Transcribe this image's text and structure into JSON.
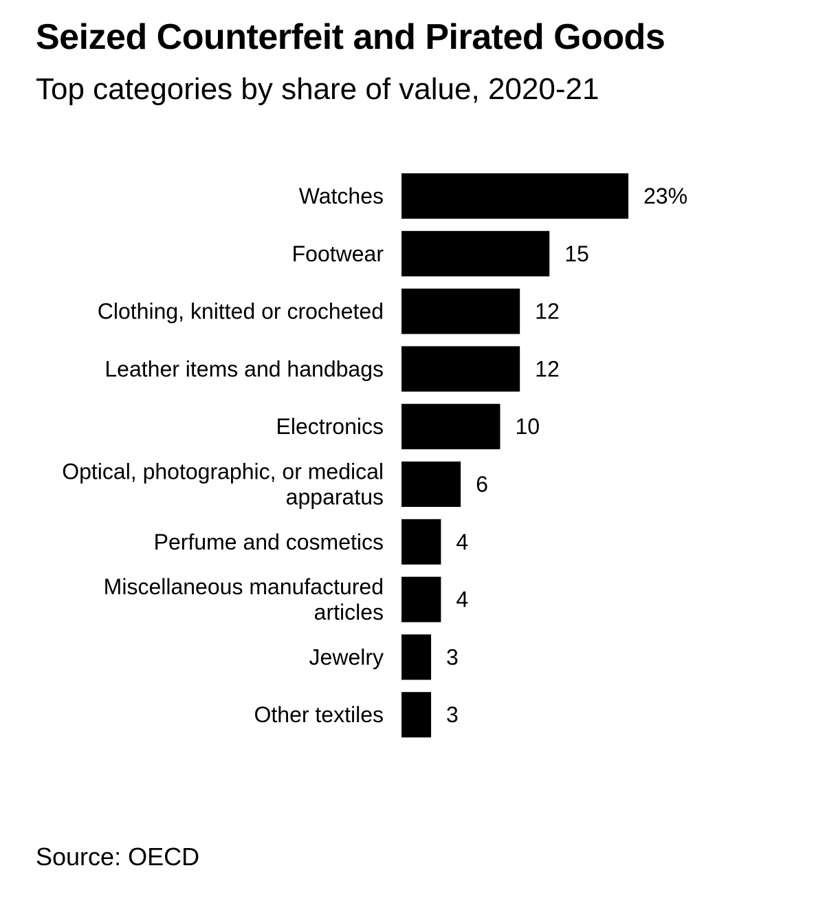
{
  "chart_data": {
    "type": "bar",
    "orientation": "horizontal",
    "title": "Seized Counterfeit and Pirated Goods",
    "subtitle": "Top categories by share of value, 2020-21",
    "categories": [
      [
        "Watches"
      ],
      [
        "Footwear"
      ],
      [
        "Clothing, knitted or crocheted"
      ],
      [
        "Leather items and handbags"
      ],
      [
        "Electronics"
      ],
      [
        "Optical, photographic, or medical",
        "apparatus"
      ],
      [
        "Perfume and cosmetics"
      ],
      [
        "Miscellaneous manufactured",
        "articles"
      ],
      [
        "Jewelry"
      ],
      [
        "Other textiles"
      ]
    ],
    "values": [
      23,
      15,
      12,
      12,
      10,
      6,
      4,
      4,
      3,
      3
    ],
    "value_labels": [
      "23%",
      "15",
      "12",
      "12",
      "10",
      "6",
      "4",
      "4",
      "3",
      "3"
    ],
    "unit": "%",
    "xlabel": "",
    "ylabel": "",
    "xlim": [
      0,
      23
    ],
    "grid": false,
    "bar_color": "#000000",
    "source": "Source: OECD"
  }
}
